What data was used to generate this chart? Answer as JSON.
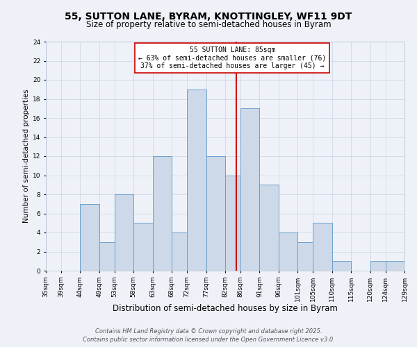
{
  "title": "55, SUTTON LANE, BYRAM, KNOTTINGLEY, WF11 9DT",
  "subtitle": "Size of property relative to semi-detached houses in Byram",
  "xlabel": "Distribution of semi-detached houses by size in Byram",
  "ylabel": "Number of semi-detached properties",
  "bin_edges": [
    35,
    39,
    44,
    49,
    53,
    58,
    63,
    68,
    72,
    77,
    82,
    86,
    91,
    96,
    101,
    105,
    110,
    115,
    120,
    124,
    129
  ],
  "counts": [
    0,
    0,
    7,
    3,
    8,
    5,
    12,
    4,
    19,
    12,
    10,
    17,
    9,
    4,
    3,
    5,
    1,
    0,
    1,
    1
  ],
  "tick_labels": [
    "35sqm",
    "39sqm",
    "44sqm",
    "49sqm",
    "53sqm",
    "58sqm",
    "63sqm",
    "68sqm",
    "72sqm",
    "77sqm",
    "82sqm",
    "86sqm",
    "91sqm",
    "96sqm",
    "101sqm",
    "105sqm",
    "110sqm",
    "115sqm",
    "120sqm",
    "124sqm",
    "129sqm"
  ],
  "bar_facecolor": "#cdd9e8",
  "bar_edgecolor": "#6a9fcc",
  "grid_color": "#d0d8e8",
  "background_color": "#eef2f8",
  "vline_x": 85,
  "vline_color": "#cc0000",
  "annotation_title": "55 SUTTON LANE: 85sqm",
  "annotation_line1": "← 63% of semi-detached houses are smaller (76)",
  "annotation_line2": "37% of semi-detached houses are larger (45) →",
  "annotation_box_facecolor": "#ffffff",
  "annotation_box_edgecolor": "#cc0000",
  "ylim": [
    0,
    24
  ],
  "yticks": [
    0,
    2,
    4,
    6,
    8,
    10,
    12,
    14,
    16,
    18,
    20,
    22,
    24
  ],
  "footer_line1": "Contains HM Land Registry data © Crown copyright and database right 2025.",
  "footer_line2": "Contains public sector information licensed under the Open Government Licence v3.0.",
  "title_fontsize": 10,
  "subtitle_fontsize": 8.5,
  "xlabel_fontsize": 8.5,
  "ylabel_fontsize": 7.5,
  "tick_fontsize": 6.5,
  "annotation_fontsize": 7,
  "footer_fontsize": 6
}
